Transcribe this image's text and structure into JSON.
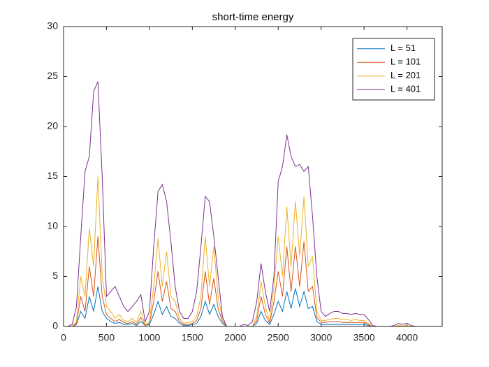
{
  "chart_data": {
    "type": "line",
    "title": "short-time energy",
    "x": [
      0,
      50,
      100,
      150,
      200,
      250,
      300,
      350,
      400,
      450,
      500,
      550,
      600,
      650,
      700,
      750,
      800,
      850,
      900,
      950,
      1000,
      1050,
      1100,
      1150,
      1200,
      1250,
      1300,
      1350,
      1400,
      1450,
      1500,
      1550,
      1600,
      1650,
      1700,
      1750,
      1800,
      1850,
      1900,
      1950,
      2000,
      2050,
      2100,
      2150,
      2200,
      2250,
      2300,
      2350,
      2400,
      2450,
      2500,
      2550,
      2600,
      2650,
      2700,
      2750,
      2800,
      2850,
      2900,
      2950,
      3000,
      3050,
      3100,
      3150,
      3200,
      3250,
      3300,
      3350,
      3400,
      3450,
      3500,
      3550,
      3600,
      3650,
      3700,
      3750,
      3800,
      3850,
      3900,
      3950,
      4000,
      4050,
      4100,
      4150,
      4200,
      4250,
      4300,
      4350,
      4400
    ],
    "series": [
      {
        "name": "L = 51",
        "color": "#0072bd",
        "values": [
          0,
          0,
          0,
          0.2,
          1.5,
          0.8,
          3,
          1.5,
          4,
          1.5,
          0.8,
          0.5,
          0.3,
          0.4,
          0.2,
          0.2,
          0.3,
          0.1,
          0.5,
          0.1,
          0.2,
          1.2,
          2.5,
          1.2,
          2,
          1,
          0.8,
          0.3,
          0.1,
          0.1,
          0.2,
          0.3,
          1,
          2.5,
          1.2,
          2.2,
          1,
          0.3,
          0,
          0,
          0,
          0,
          0,
          0,
          0,
          0.3,
          1.5,
          0.6,
          0.2,
          1.2,
          2.5,
          1.5,
          3.5,
          1.8,
          3.8,
          2,
          3.5,
          1.8,
          2,
          0.5,
          0.2,
          0.2,
          0.2,
          0.2,
          0.2,
          0.2,
          0.2,
          0.2,
          0.2,
          0.2,
          0.2,
          0.1,
          0,
          0,
          0,
          0,
          0,
          0,
          0,
          0,
          0,
          0,
          0,
          0,
          0,
          0,
          0,
          0,
          0
        ]
      },
      {
        "name": "L = 101",
        "color": "#d95319",
        "values": [
          0,
          0,
          0,
          0.3,
          3,
          1.5,
          6,
          3,
          9,
          3,
          1.2,
          0.8,
          0.5,
          0.7,
          0.4,
          0.3,
          0.5,
          0.2,
          0.9,
          0.1,
          0.3,
          2.5,
          5.5,
          2.5,
          4.5,
          1.8,
          1.5,
          0.5,
          0.2,
          0.2,
          0.3,
          0.6,
          1.8,
          5.5,
          2.2,
          4.8,
          1.8,
          0.5,
          0,
          0,
          0,
          0,
          0,
          0,
          0,
          0.6,
          3,
          1.2,
          0.3,
          2.5,
          5.5,
          3,
          8,
          3.5,
          8,
          4,
          8.5,
          3.5,
          4,
          0.9,
          0.4,
          0.4,
          0.5,
          0.5,
          0.5,
          0.4,
          0.4,
          0.4,
          0.4,
          0.4,
          0.4,
          0.2,
          0,
          0,
          0,
          0,
          0,
          0,
          0.05,
          0,
          0.05,
          0,
          0,
          0,
          0,
          0,
          0,
          0,
          0
        ]
      },
      {
        "name": "L = 201",
        "color": "#edb120",
        "values": [
          0,
          0,
          0,
          0.5,
          5,
          3,
          9.8,
          6,
          15,
          5,
          2,
          1.5,
          0.8,
          1.2,
          0.6,
          0.5,
          0.8,
          0.4,
          1.5,
          0.2,
          0.5,
          4,
          8.8,
          4,
          7.5,
          3,
          2.5,
          0.8,
          0.3,
          0.4,
          0.5,
          1,
          3,
          9,
          4,
          8,
          3,
          0.8,
          0,
          0,
          0,
          0,
          0,
          0,
          0,
          1,
          4.5,
          2,
          0.5,
          4,
          9,
          5,
          12,
          6,
          12.5,
          7,
          13,
          6,
          7,
          1.5,
          0.6,
          0.6,
          0.7,
          0.8,
          0.8,
          0.7,
          0.7,
          0.6,
          0.7,
          0.6,
          0.6,
          0.3,
          0,
          0,
          0,
          0,
          0,
          0,
          0.1,
          0.05,
          0.1,
          0,
          0,
          0,
          0,
          0,
          0,
          0,
          0
        ]
      },
      {
        "name": "L = 401",
        "color": "#7e2f8e",
        "values": [
          0,
          0,
          0.2,
          2,
          9,
          15.5,
          17,
          23.5,
          24.5,
          15,
          3,
          3.5,
          4,
          3,
          2,
          1.5,
          2,
          2.5,
          3.2,
          0.5,
          1.5,
          8,
          13.5,
          14.2,
          12.5,
          8.5,
          4,
          1.5,
          0.8,
          0.8,
          1.5,
          3.5,
          8,
          13,
          12.5,
          9,
          5,
          1,
          0,
          0,
          0,
          0,
          0.2,
          0.1,
          0.5,
          2.5,
          6.3,
          3.5,
          1.5,
          5,
          14.5,
          16,
          19.2,
          17,
          16,
          16.2,
          15.5,
          16,
          11,
          5,
          1.5,
          1,
          1.3,
          1.5,
          1.5,
          1.3,
          1.3,
          1.2,
          1.3,
          1.2,
          1.2,
          0.7,
          0.1,
          0,
          0,
          0,
          0,
          0.1,
          0.3,
          0.2,
          0.3,
          0.1,
          0,
          0,
          0,
          0,
          0,
          0,
          0
        ]
      }
    ],
    "xlim": [
      0,
      4410
    ],
    "xticks": [
      0,
      500,
      1000,
      1500,
      2000,
      2500,
      3000,
      3500,
      4000
    ],
    "ylim": [
      0,
      30
    ],
    "yticks": [
      0,
      5,
      10,
      15,
      20,
      25,
      30
    ],
    "grid": false,
    "legend": "northeast"
  }
}
